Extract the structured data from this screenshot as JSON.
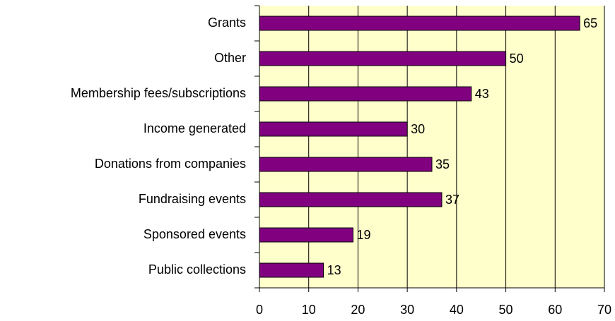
{
  "chart_data": {
    "type": "bar",
    "orientation": "horizontal",
    "categories": [
      "Grants",
      "Other",
      "Membership fees/subscriptions",
      "Income generated",
      "Donations from companies",
      "Fundraising events",
      "Sponsored events",
      "Public collections"
    ],
    "values": [
      65,
      50,
      43,
      30,
      35,
      37,
      19,
      13
    ],
    "color": "#800080",
    "xlim": [
      0,
      70
    ],
    "xticks": [
      0,
      10,
      20,
      30,
      40,
      50,
      60,
      70
    ],
    "grid": true
  }
}
